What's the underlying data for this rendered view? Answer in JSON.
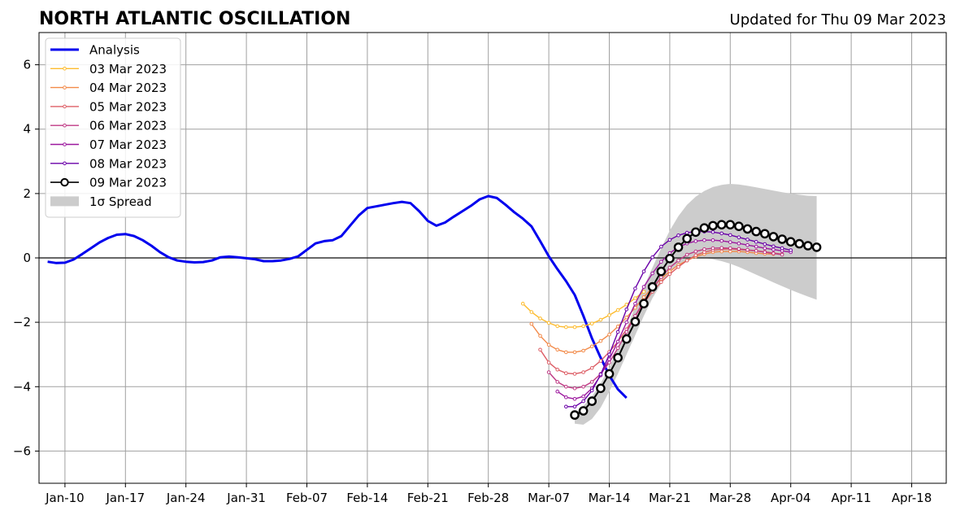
{
  "chart_data": {
    "type": "line",
    "title": "NORTH ATLANTIC OSCILLATION",
    "subtitle": "Updated for Thu 09 Mar 2023",
    "xlabel": "",
    "ylabel": "",
    "x_range": [
      "2023-01-07",
      "2023-04-22"
    ],
    "ylim": [
      -7,
      7
    ],
    "x_ticks": [
      {
        "date": "2023-01-10",
        "label": "Jan-10"
      },
      {
        "date": "2023-01-17",
        "label": "Jan-17"
      },
      {
        "date": "2023-01-24",
        "label": "Jan-24"
      },
      {
        "date": "2023-01-31",
        "label": "Jan-31"
      },
      {
        "date": "2023-02-07",
        "label": "Feb-07"
      },
      {
        "date": "2023-02-14",
        "label": "Feb-14"
      },
      {
        "date": "2023-02-21",
        "label": "Feb-21"
      },
      {
        "date": "2023-02-28",
        "label": "Feb-28"
      },
      {
        "date": "2023-03-07",
        "label": "Mar-07"
      },
      {
        "date": "2023-03-14",
        "label": "Mar-14"
      },
      {
        "date": "2023-03-21",
        "label": "Mar-21"
      },
      {
        "date": "2023-03-28",
        "label": "Mar-28"
      },
      {
        "date": "2023-04-04",
        "label": "Apr-04"
      },
      {
        "date": "2023-04-11",
        "label": "Apr-11"
      },
      {
        "date": "2023-04-18",
        "label": "Apr-18"
      }
    ],
    "y_ticks": [
      {
        "value": 6,
        "label": "6"
      },
      {
        "value": 4,
        "label": "4"
      },
      {
        "value": 2,
        "label": "2"
      },
      {
        "value": 0,
        "label": "0"
      },
      {
        "value": -2,
        "label": "−2"
      },
      {
        "value": -4,
        "label": "−4"
      },
      {
        "value": -6,
        "label": "−6"
      }
    ],
    "grid": true,
    "legend_position": "top-left",
    "legend": [
      "Analysis",
      "03 Mar 2023",
      "04 Mar 2023",
      "05 Mar 2023",
      "06 Mar 2023",
      "07 Mar 2023",
      "08 Mar 2023",
      "09 Mar 2023",
      "1σ Spread"
    ],
    "analysis": {
      "name": "Analysis",
      "color": "#0000ee",
      "start": "2023-01-08",
      "values": [
        -0.12,
        -0.16,
        -0.15,
        -0.05,
        0.12,
        0.3,
        0.48,
        0.62,
        0.72,
        0.74,
        0.68,
        0.55,
        0.38,
        0.18,
        0.02,
        -0.08,
        -0.12,
        -0.14,
        -0.13,
        -0.08,
        0.02,
        0.04,
        0.02,
        -0.01,
        -0.04,
        -0.1,
        -0.1,
        -0.08,
        -0.03,
        0.05,
        0.25,
        0.45,
        0.52,
        0.55,
        0.68,
        1.0,
        1.32,
        1.55,
        1.6,
        1.65,
        1.7,
        1.74,
        1.7,
        1.45,
        1.15,
        1.0,
        1.1,
        1.28,
        1.45,
        1.62,
        1.82,
        1.92,
        1.86,
        1.65,
        1.42,
        1.22,
        0.98,
        0.52,
        0.05,
        -0.35,
        -0.72,
        -1.15,
        -1.8,
        -2.5,
        -3.1,
        -3.65,
        -4.08,
        -4.35
      ]
    },
    "spread": {
      "name": "1σ Spread",
      "color": "#cccccc",
      "start": "2023-03-10",
      "upper": [
        -4.85,
        -4.6,
        -4.3,
        -3.9,
        -3.4,
        -2.8,
        -2.2,
        -1.5,
        -0.9,
        -0.3,
        0.3,
        0.85,
        1.3,
        1.65,
        1.9,
        2.08,
        2.2,
        2.27,
        2.3,
        2.28,
        2.24,
        2.19,
        2.14,
        2.09,
        2.04,
        2.0,
        1.96,
        1.93,
        1.92
      ],
      "lower": [
        -5.15,
        -5.18,
        -5.0,
        -4.65,
        -4.15,
        -3.6,
        -3.0,
        -2.4,
        -1.8,
        -1.25,
        -0.8,
        -0.45,
        -0.2,
        -0.06,
        0.0,
        0.0,
        -0.04,
        -0.1,
        -0.18,
        -0.28,
        -0.4,
        -0.52,
        -0.64,
        -0.76,
        -0.88,
        -0.99,
        -1.1,
        -1.2,
        -1.3
      ]
    },
    "forecasts": [
      {
        "name": "03 Mar 2023",
        "color": "#fdbb2d",
        "start": "2023-03-04",
        "values": [
          -1.42,
          -1.68,
          -1.88,
          -2.02,
          -2.12,
          -2.15,
          -2.15,
          -2.12,
          -2.04,
          -1.92,
          -1.78,
          -1.62,
          -1.45,
          -1.25,
          -1.05
        ]
      },
      {
        "name": "04 Mar 2023",
        "color": "#f28a49",
        "start": "2023-03-05",
        "values": [
          -2.05,
          -2.42,
          -2.7,
          -2.85,
          -2.93,
          -2.93,
          -2.88,
          -2.75,
          -2.58,
          -2.38,
          -2.13,
          -1.85,
          -1.55,
          -1.22,
          -0.92,
          -0.65,
          -0.42,
          -0.22,
          -0.08,
          0.04,
          0.12,
          0.18,
          0.2,
          0.2,
          0.2,
          0.18,
          0.15,
          0.13,
          0.12
        ]
      },
      {
        "name": "05 Mar 2023",
        "color": "#dd5e66",
        "start": "2023-03-06",
        "values": [
          -2.85,
          -3.25,
          -3.47,
          -3.58,
          -3.6,
          -3.55,
          -3.42,
          -3.2,
          -2.92,
          -2.6,
          -2.22,
          -1.8,
          -1.4,
          -1.05,
          -0.75,
          -0.5,
          -0.28,
          -0.08,
          0.08,
          0.18,
          0.24,
          0.27,
          0.28,
          0.26,
          0.24,
          0.22,
          0.19,
          0.15,
          0.12
        ]
      },
      {
        "name": "06 Mar 2023",
        "color": "#bf3984",
        "start": "2023-03-07",
        "values": [
          -3.55,
          -3.85,
          -4.0,
          -4.05,
          -4.0,
          -3.85,
          -3.6,
          -3.25,
          -2.8,
          -2.3,
          -1.8,
          -1.35,
          -0.95,
          -0.6,
          -0.3,
          -0.08,
          0.1,
          0.2,
          0.27,
          0.3,
          0.31,
          0.3,
          0.28,
          0.25,
          0.22,
          0.18,
          0.14,
          0.1
        ]
      },
      {
        "name": "07 Mar 2023",
        "color": "#9c179e",
        "start": "2023-03-08",
        "values": [
          -4.15,
          -4.33,
          -4.38,
          -4.3,
          -4.05,
          -3.65,
          -3.15,
          -2.6,
          -2.0,
          -1.42,
          -0.9,
          -0.48,
          -0.12,
          0.15,
          0.33,
          0.45,
          0.52,
          0.55,
          0.55,
          0.53,
          0.49,
          0.45,
          0.4,
          0.35,
          0.3,
          0.26,
          0.22,
          0.18
        ]
      },
      {
        "name": "08 Mar 2023",
        "color": "#6a00a8",
        "start": "2023-03-09",
        "values": [
          -4.62,
          -4.62,
          -4.45,
          -4.12,
          -3.62,
          -3.0,
          -2.3,
          -1.6,
          -0.95,
          -0.42,
          0.02,
          0.35,
          0.56,
          0.7,
          0.78,
          0.82,
          0.82,
          0.8,
          0.76,
          0.71,
          0.64,
          0.57,
          0.5,
          0.43,
          0.36,
          0.3,
          0.24
        ]
      },
      {
        "name": "09 Mar 2023",
        "color": "#000000",
        "start": "2023-03-10",
        "values": [
          -4.88,
          -4.75,
          -4.45,
          -4.05,
          -3.6,
          -3.1,
          -2.52,
          -1.98,
          -1.42,
          -0.9,
          -0.42,
          -0.02,
          0.33,
          0.6,
          0.8,
          0.93,
          1.0,
          1.03,
          1.03,
          0.98,
          0.9,
          0.82,
          0.75,
          0.66,
          0.58,
          0.5,
          0.44,
          0.38,
          0.33
        ]
      }
    ]
  }
}
